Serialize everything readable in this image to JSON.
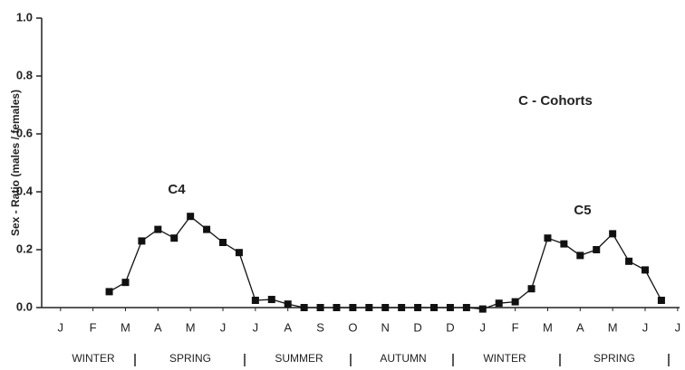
{
  "chart_data": {
    "type": "line",
    "y_label": "Sex - Ratio (males / females)",
    "annotations": [
      "C - Cohorts",
      "C4",
      "C5"
    ],
    "seasons": [
      "WINTER",
      "SPRING",
      "SUMMER",
      "AUTUMN",
      "WINTER",
      "SPRING"
    ],
    "x": [
      1.5,
      2,
      2.5,
      3,
      3.5,
      4,
      4.5,
      5,
      5.5,
      6,
      6.5,
      7,
      7.5,
      8,
      8.5,
      9,
      9.5,
      10,
      10.5,
      11,
      11.5,
      12,
      12.5,
      13,
      13.5,
      14,
      14.5,
      15,
      15.5,
      16,
      16.5,
      17,
      17.5,
      18,
      18.5
    ],
    "series": [
      {
        "color": "#111111",
        "values": [
          0.055,
          0.087,
          0.23,
          0.27,
          0.24,
          0.315,
          0.27,
          0.225,
          0.19,
          0.025,
          0.028,
          0.012,
          0,
          0,
          0,
          0,
          0,
          0,
          0,
          0,
          0,
          0,
          0,
          -0.005,
          0.015,
          0.02,
          0.065,
          0.24,
          0.22,
          0.18,
          0.2,
          0.255,
          0.16,
          0.13,
          0.025
        ]
      }
    ],
    "xlim": [
      -0.58,
      19.06
    ],
    "xticks": [
      {
        "value": 0,
        "label": "J"
      },
      {
        "value": 1,
        "label": "F"
      },
      {
        "value": 2,
        "label": "M"
      },
      {
        "value": 3,
        "label": "A"
      },
      {
        "value": 4,
        "label": "M"
      },
      {
        "value": 5,
        "label": "J"
      },
      {
        "value": 6,
        "label": "J"
      },
      {
        "value": 7,
        "label": "A"
      },
      {
        "value": 8,
        "label": "S"
      },
      {
        "value": 9,
        "label": "O"
      },
      {
        "value": 10,
        "label": "N"
      },
      {
        "value": 11,
        "label": "D"
      },
      {
        "value": 12,
        "label": "D"
      },
      {
        "value": 13,
        "label": "J"
      },
      {
        "value": 14,
        "label": "F"
      },
      {
        "value": 15,
        "label": "M"
      },
      {
        "value": 16,
        "label": "A"
      },
      {
        "value": 17,
        "label": "M"
      },
      {
        "value": 18,
        "label": "J"
      },
      {
        "value": 19,
        "label": "J"
      }
    ],
    "ylim": [
      0,
      1
    ],
    "yticks": [
      {
        "value": 0,
        "label": "0.0"
      },
      0.2,
      0.4,
      0.6,
      0.8,
      {
        "value": 1,
        "label": "1.0"
      }
    ]
  }
}
